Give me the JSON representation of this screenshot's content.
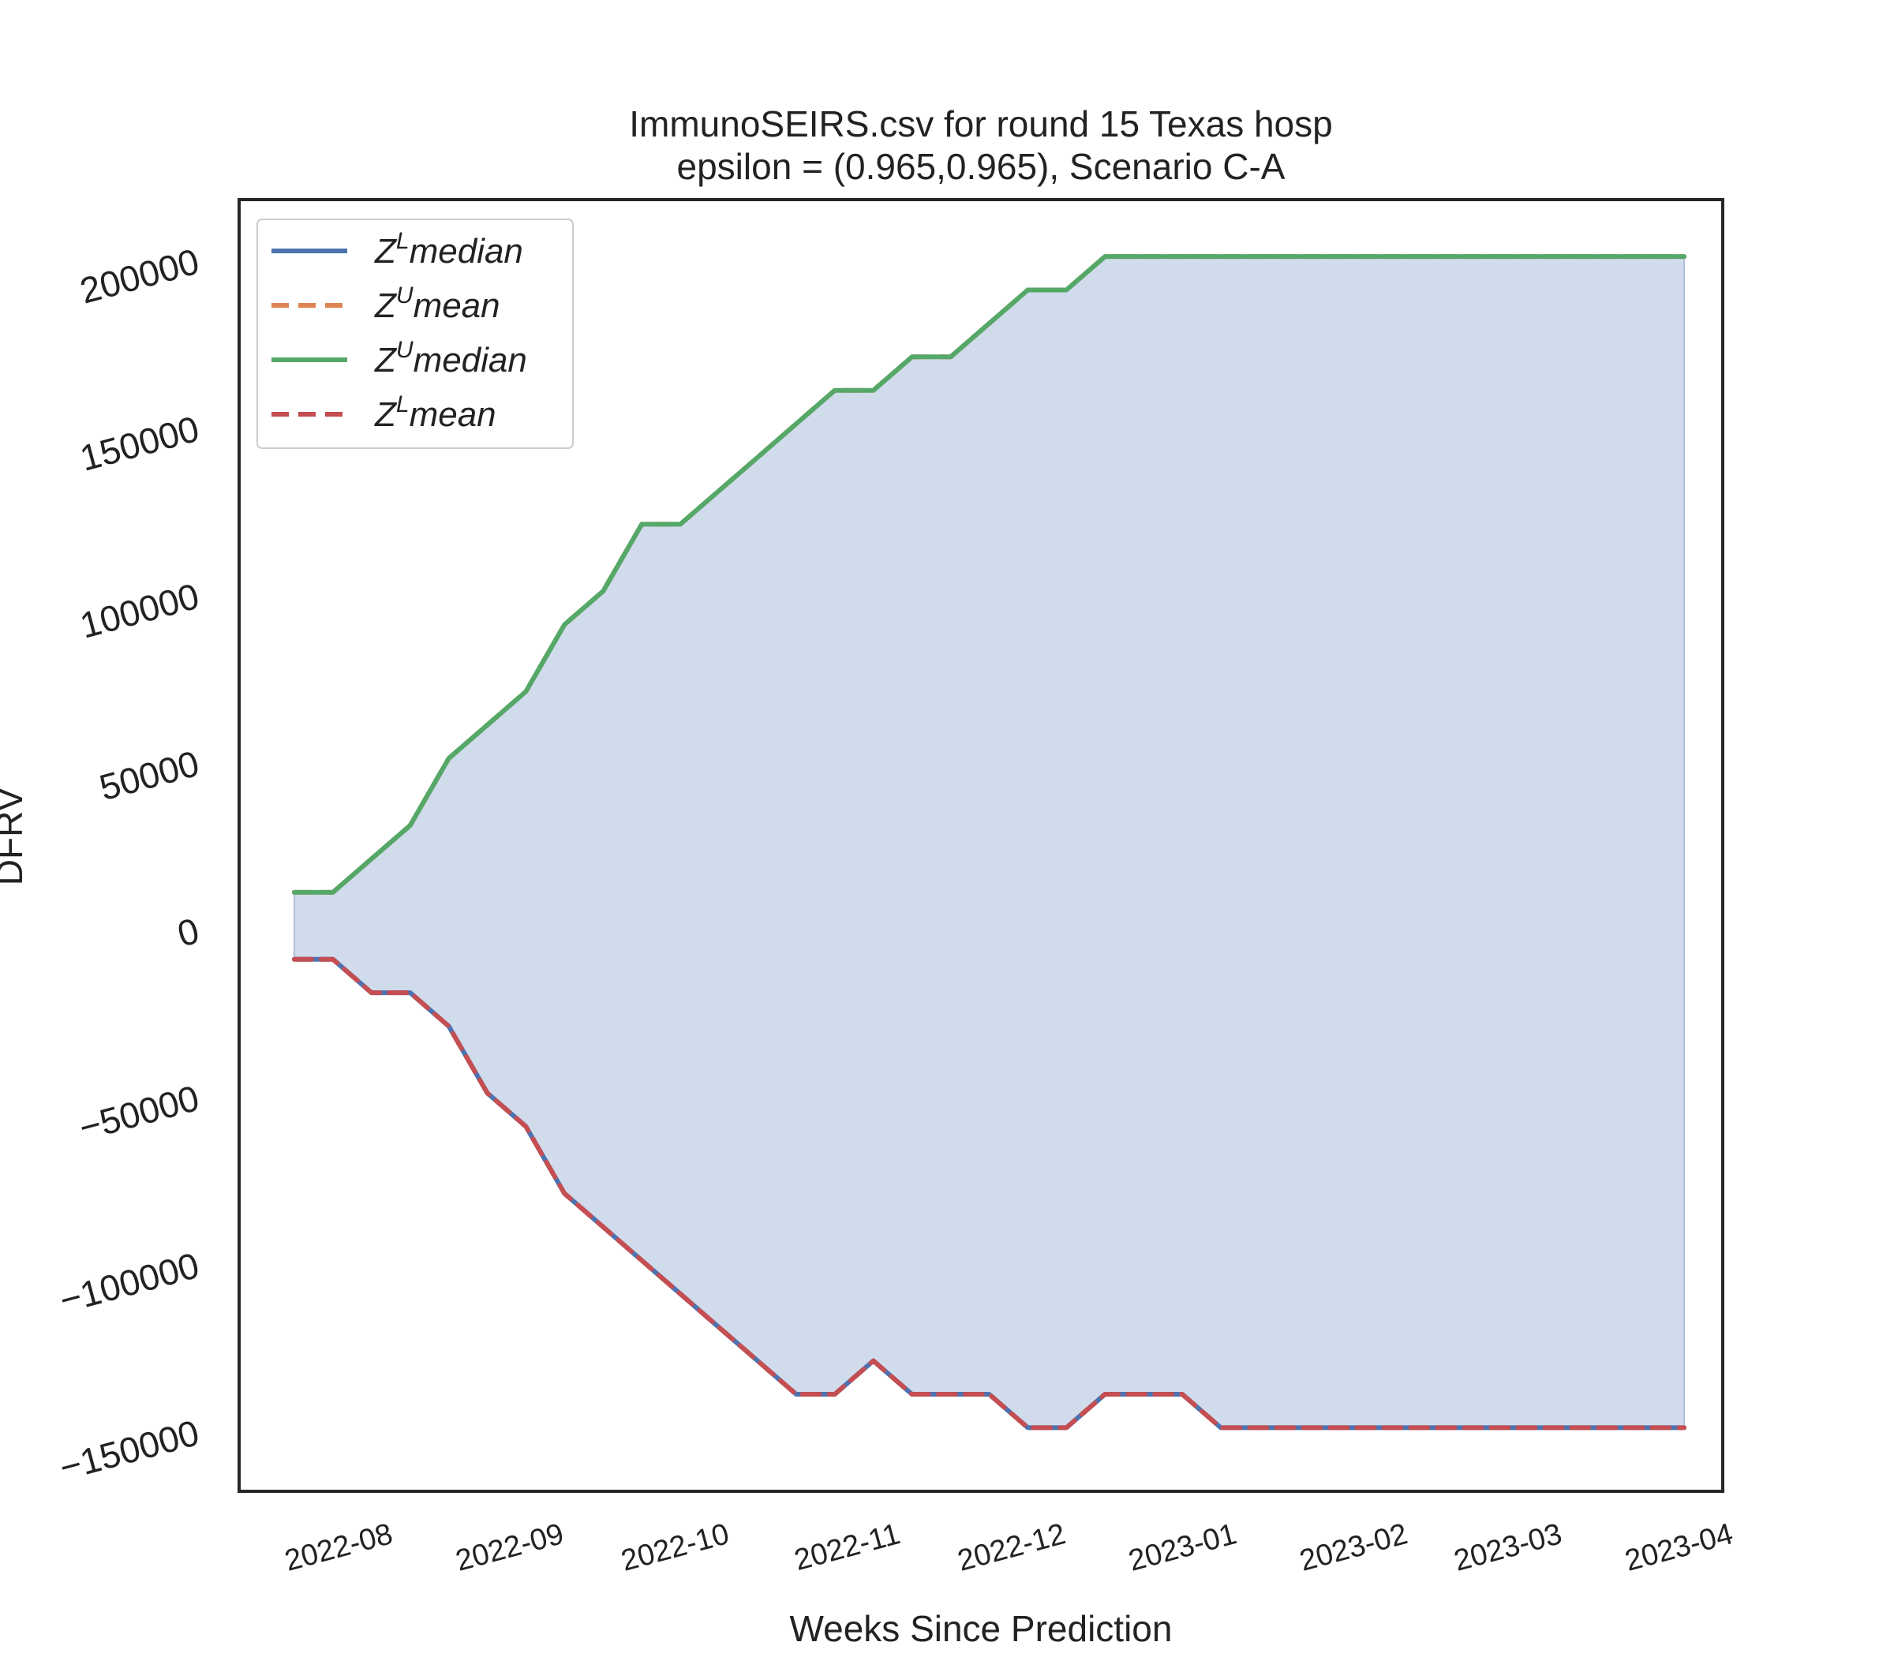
{
  "chart_data": {
    "type": "line",
    "title": [
      "ImmunoSEIRS.csv for round 15 Texas  hosp",
      "epsilon = (0.965,0.965), Scenario C-A"
    ],
    "xlabel": "Weeks Since Prediction",
    "ylabel": "DFRV",
    "x_axis": "date",
    "xlim": [
      "2022-07-06",
      "2023-04-01"
    ],
    "ylim": [
      -168000,
      218000
    ],
    "xticks": [
      "2022-08",
      "2022-09",
      "2022-10",
      "2022-11",
      "2022-12",
      "2023-01",
      "2023-02",
      "2023-03",
      "2023-04"
    ],
    "ytick_values": [
      -150000,
      -100000,
      -50000,
      0,
      50000,
      100000,
      150000,
      200000
    ],
    "ytick_labels": [
      "−150000",
      "−100000",
      "−50000",
      "0",
      "50000",
      "100000",
      "150000",
      "200000"
    ],
    "grid": false,
    "legend_position": "top-left",
    "fill_between": {
      "upper": "Z^U median",
      "lower": "Z^L median",
      "color": "#d0dbeb"
    },
    "x": [
      "2022-07-16",
      "2022-07-23",
      "2022-07-30",
      "2022-08-06",
      "2022-08-13",
      "2022-08-20",
      "2022-08-27",
      "2022-09-03",
      "2022-09-10",
      "2022-09-17",
      "2022-09-24",
      "2022-10-01",
      "2022-10-08",
      "2022-10-15",
      "2022-10-22",
      "2022-10-29",
      "2022-11-05",
      "2022-11-12",
      "2022-11-19",
      "2022-11-26",
      "2022-12-03",
      "2022-12-10",
      "2022-12-17",
      "2022-12-24",
      "2022-12-31",
      "2023-01-07",
      "2023-01-14",
      "2023-01-21",
      "2023-01-28",
      "2023-02-04",
      "2023-02-11",
      "2023-02-18",
      "2023-02-25",
      "2023-03-04",
      "2023-03-11",
      "2023-03-18",
      "2023-03-25"
    ],
    "series": [
      {
        "name": "Z^L median",
        "label_base": "Z",
        "label_sup": "L",
        "label_rest": "median",
        "color": "#4c72b0",
        "dash": "solid",
        "values": [
          -9000,
          -9000,
          -19000,
          -19000,
          -29000,
          -49000,
          -59000,
          -79000,
          -89000,
          -99000,
          -109000,
          -119000,
          -129000,
          -139000,
          -139000,
          -129000,
          -139000,
          -139000,
          -139000,
          -149000,
          -149000,
          -139000,
          -139000,
          -139000,
          -149000,
          -149000,
          -149000,
          -149000,
          -149000,
          -149000,
          -149000,
          -149000,
          -149000,
          -149000,
          -149000,
          -149000,
          -149000
        ]
      },
      {
        "name": "Z^U mean",
        "label_base": "Z",
        "label_sup": "U",
        "label_rest": "mean",
        "color": "#dd8452",
        "dash": "dashed",
        "values": [
          11000,
          11000,
          21000,
          31000,
          51000,
          61000,
          71000,
          91000,
          101000,
          121000,
          121000,
          131000,
          141000,
          151000,
          161000,
          161000,
          171000,
          171000,
          181000,
          191000,
          191000,
          201000,
          201000,
          201000,
          201000,
          201000,
          201000,
          201000,
          201000,
          201000,
          201000,
          201000,
          201000,
          201000,
          201000,
          201000,
          201000
        ]
      },
      {
        "name": "Z^U median",
        "label_base": "Z",
        "label_sup": "U",
        "label_rest": "median",
        "color": "#55a868",
        "dash": "solid",
        "values": [
          11000,
          11000,
          21000,
          31000,
          51000,
          61000,
          71000,
          91000,
          101000,
          121000,
          121000,
          131000,
          141000,
          151000,
          161000,
          161000,
          171000,
          171000,
          181000,
          191000,
          191000,
          201000,
          201000,
          201000,
          201000,
          201000,
          201000,
          201000,
          201000,
          201000,
          201000,
          201000,
          201000,
          201000,
          201000,
          201000,
          201000
        ]
      },
      {
        "name": "Z^L mean",
        "label_base": "Z",
        "label_sup": "L",
        "label_rest": "mean",
        "color": "#c44e52",
        "dash": "dashed",
        "values": [
          -9000,
          -9000,
          -19000,
          -19000,
          -29000,
          -49000,
          -59000,
          -79000,
          -89000,
          -99000,
          -109000,
          -119000,
          -129000,
          -139000,
          -139000,
          -129000,
          -139000,
          -139000,
          -139000,
          -149000,
          -149000,
          -139000,
          -139000,
          -139000,
          -149000,
          -149000,
          -149000,
          -149000,
          -149000,
          -149000,
          -149000,
          -149000,
          -149000,
          -149000,
          -149000,
          -149000,
          -149000
        ]
      }
    ]
  }
}
